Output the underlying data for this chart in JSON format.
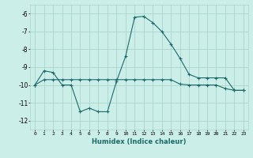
{
  "xlabel": "Humidex (Indice chaleur)",
  "bg_color": "#cceee8",
  "grid_color": "#aad4cc",
  "line_color": "#1a6b6b",
  "xlim": [
    -0.5,
    23.5
  ],
  "ylim": [
    -12.5,
    -5.5
  ],
  "yticks": [
    -12,
    -11,
    -10,
    -9,
    -8,
    -7,
    -6
  ],
  "xticks": [
    0,
    1,
    2,
    3,
    4,
    5,
    6,
    7,
    8,
    9,
    10,
    11,
    12,
    13,
    14,
    15,
    16,
    17,
    18,
    19,
    20,
    21,
    22,
    23
  ],
  "line1_x": [
    0,
    1,
    2,
    3,
    4,
    5,
    6,
    7,
    8,
    9,
    10,
    11,
    12,
    13,
    14,
    15,
    16,
    17,
    18,
    19,
    20,
    21,
    22,
    23
  ],
  "line1_y": [
    -10.0,
    -9.2,
    -9.3,
    -10.0,
    -10.0,
    -11.5,
    -11.3,
    -11.5,
    -11.5,
    -9.8,
    -8.4,
    -6.2,
    -6.15,
    -6.5,
    -7.0,
    -7.7,
    -8.5,
    -9.4,
    -9.6,
    -9.6,
    -9.6,
    -9.6,
    -10.3,
    -10.3
  ],
  "line2_x": [
    0,
    1,
    2,
    3,
    4,
    5,
    6,
    7,
    8,
    9,
    10,
    11,
    12,
    13,
    14,
    15,
    16,
    17,
    18,
    19,
    20,
    21,
    22,
    23
  ],
  "line2_y": [
    -10.0,
    -9.7,
    -9.7,
    -9.7,
    -9.7,
    -9.7,
    -9.7,
    -9.7,
    -9.7,
    -9.7,
    -9.7,
    -9.7,
    -9.7,
    -9.7,
    -9.7,
    -9.7,
    -9.95,
    -10.0,
    -10.0,
    -10.0,
    -10.0,
    -10.2,
    -10.3,
    -10.3
  ]
}
